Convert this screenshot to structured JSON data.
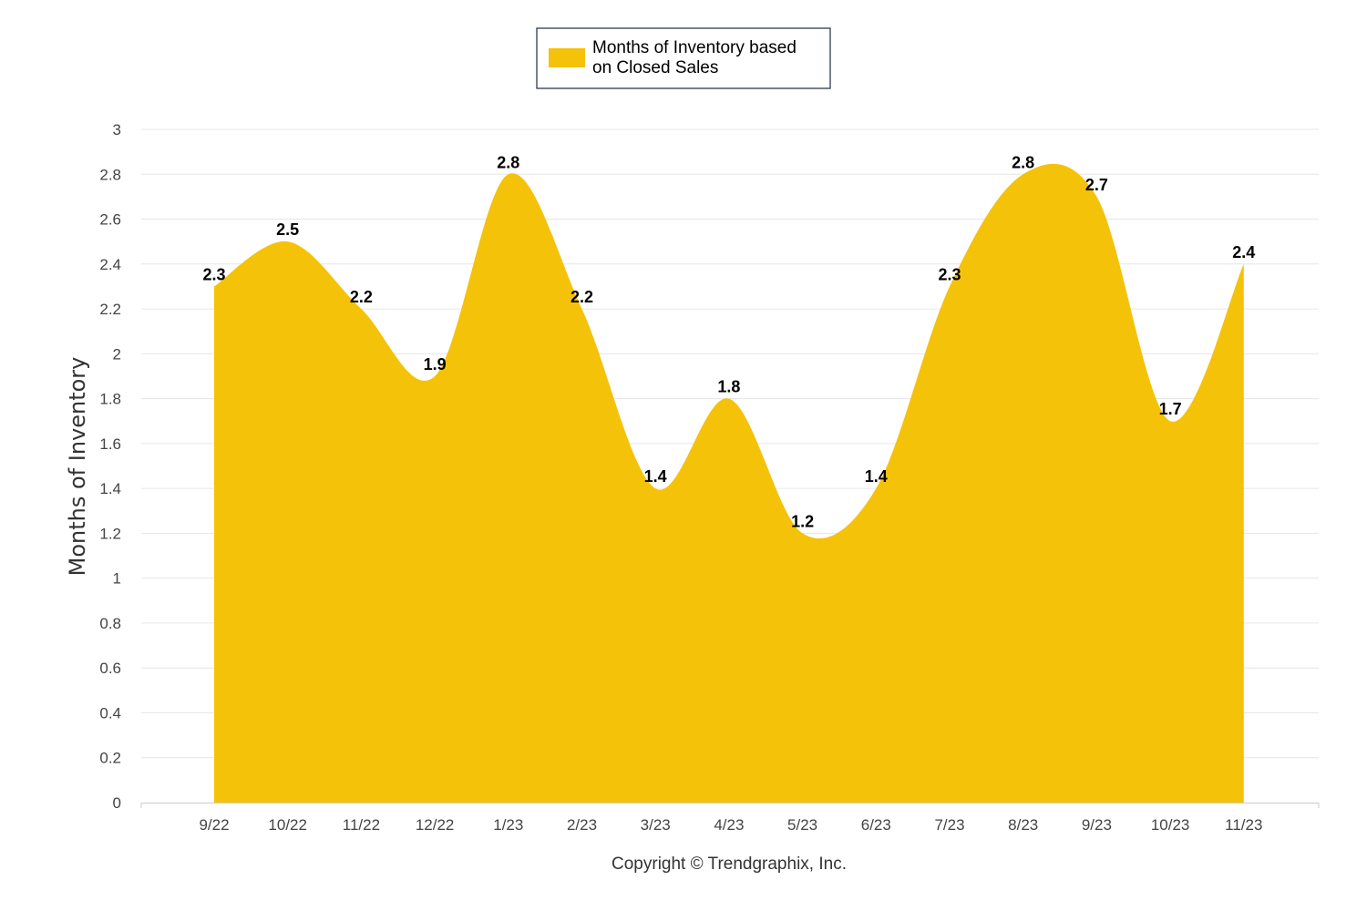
{
  "legend": {
    "lines": [
      "Months of Inventory based",
      "on Closed Sales"
    ]
  },
  "copyright": "Copyright © Trendgraphix, Inc.",
  "colors": {
    "area": "#F5C20A",
    "legend_border": "#1f2a44"
  },
  "chart_data": {
    "type": "area",
    "title": "",
    "xlabel": "",
    "ylabel": "Months of Inventory",
    "ylim": [
      0,
      3
    ],
    "yticks": [
      "0",
      "0.2",
      "0.4",
      "0.6",
      "0.8",
      "1",
      "1.2",
      "1.4",
      "1.6",
      "1.8",
      "2",
      "2.2",
      "2.4",
      "2.6",
      "2.8",
      "3"
    ],
    "grid": true,
    "legend_position": "top-center",
    "categories": [
      "9/22",
      "10/22",
      "11/22",
      "12/22",
      "1/23",
      "2/23",
      "3/23",
      "4/23",
      "5/23",
      "6/23",
      "7/23",
      "8/23",
      "9/23",
      "10/23",
      "11/23"
    ],
    "series": [
      {
        "name": "Months of Inventory based on Closed Sales",
        "values": [
          2.3,
          2.5,
          2.2,
          1.9,
          2.8,
          2.2,
          1.4,
          1.8,
          1.2,
          1.4,
          2.3,
          2.8,
          2.7,
          1.7,
          2.4
        ],
        "labels": [
          "2.3",
          "2.5",
          "2.2",
          "1.9",
          "2.8",
          "2.2",
          "1.4",
          "1.8",
          "1.2",
          "1.4",
          "2.3",
          "2.8",
          "2.7",
          "1.7",
          "2.4"
        ]
      }
    ]
  }
}
